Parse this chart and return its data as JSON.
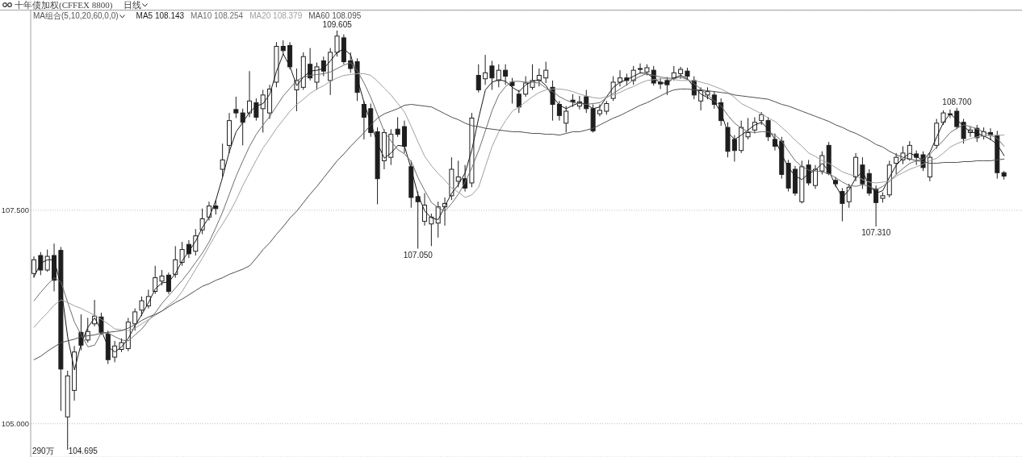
{
  "chart_data": {
    "type": "candlestick",
    "title": "十年债加权(CFFEX 8800)",
    "subtitle": "日线",
    "legend_title": "MA组合(5,10,20,60,0,0)",
    "color": "#1e1e1e",
    "categories": [
      null,
      null,
      null,
      null,
      null,
      null,
      null,
      null,
      null,
      null,
      null,
      null,
      null,
      null,
      null,
      null,
      null,
      null,
      null,
      null,
      null,
      null,
      null,
      null,
      null,
      null,
      null,
      null,
      null,
      null,
      null,
      null,
      null,
      null,
      null,
      null,
      null,
      null,
      null,
      null,
      null,
      null,
      null,
      null,
      null,
      null,
      null,
      null,
      null,
      null,
      null,
      null,
      null,
      null,
      null,
      null,
      null,
      null,
      null,
      null,
      null,
      null,
      null,
      null,
      null,
      null,
      null,
      null,
      null,
      null,
      null,
      null,
      null,
      null,
      null,
      null,
      null,
      null,
      null,
      null,
      null,
      null,
      null,
      null,
      null,
      null,
      null,
      null,
      null,
      null,
      null,
      null,
      null,
      null,
      null,
      null,
      null,
      null,
      null,
      null,
      null,
      null,
      null,
      null,
      null,
      null,
      null,
      null,
      null,
      null,
      null,
      null,
      null,
      null,
      null,
      null,
      null,
      null,
      null,
      null,
      null,
      null,
      null,
      null,
      null,
      null,
      null,
      null,
      null,
      null,
      null,
      null,
      null,
      null,
      null,
      null,
      null,
      null,
      null,
      null,
      null,
      null,
      null,
      null,
      null
    ],
    "ohlc": [
      [
        106.76,
        106.96,
        106.71,
        106.92
      ],
      [
        106.97,
        107.01,
        106.74,
        106.8
      ],
      [
        106.8,
        107.04,
        106.78,
        106.96
      ],
      [
        106.97,
        107.11,
        106.55,
        106.68
      ],
      [
        107.03,
        107.07,
        105.15,
        105.64
      ],
      [
        105.08,
        105.62,
        104.695,
        105.56
      ],
      [
        105.39,
        105.91,
        105.27,
        105.84
      ],
      [
        106.07,
        106.28,
        105.86,
        105.92
      ],
      [
        105.98,
        106.24,
        105.95,
        106.08
      ],
      [
        106.17,
        106.45,
        106.14,
        106.26
      ],
      [
        106.25,
        106.3,
        106.04,
        106.07
      ],
      [
        106.05,
        106.09,
        105.7,
        105.75
      ],
      [
        105.78,
        105.97,
        105.72,
        105.91
      ],
      [
        105.87,
        106.0,
        105.84,
        105.95
      ],
      [
        105.88,
        106.24,
        105.85,
        106.19
      ],
      [
        106.17,
        106.35,
        106.09,
        106.31
      ],
      [
        106.33,
        106.49,
        106.26,
        106.44
      ],
      [
        106.38,
        106.57,
        106.35,
        106.49
      ],
      [
        106.55,
        106.85,
        106.52,
        106.71
      ],
      [
        106.67,
        106.8,
        106.62,
        106.73
      ],
      [
        106.74,
        106.77,
        106.52,
        106.55
      ],
      [
        106.75,
        107.08,
        106.71,
        106.92
      ],
      [
        106.89,
        107.13,
        106.85,
        107.04
      ],
      [
        107.1,
        107.15,
        106.94,
        106.99
      ],
      [
        107.02,
        107.28,
        106.97,
        107.2
      ],
      [
        107.27,
        107.52,
        107.22,
        107.4
      ],
      [
        107.42,
        107.6,
        107.38,
        107.55
      ],
      [
        107.55,
        107.62,
        107.45,
        107.52
      ],
      [
        107.98,
        108.28,
        107.89,
        108.09
      ],
      [
        108.26,
        108.64,
        108.17,
        108.55
      ],
      [
        108.68,
        108.83,
        108.58,
        108.64
      ],
      [
        108.64,
        108.69,
        108.26,
        108.53
      ],
      [
        108.64,
        109.13,
        108.59,
        108.78
      ],
      [
        108.76,
        108.81,
        108.55,
        108.59
      ],
      [
        108.69,
        108.91,
        108.41,
        108.85
      ],
      [
        108.64,
        108.97,
        108.57,
        108.92
      ],
      [
        109.0,
        109.47,
        108.94,
        109.42
      ],
      [
        109.42,
        109.49,
        109.32,
        109.37
      ],
      [
        109.43,
        109.47,
        109.15,
        109.18
      ],
      [
        108.91,
        109.16,
        108.66,
        109.02
      ],
      [
        108.94,
        109.35,
        108.91,
        109.3
      ],
      [
        109.21,
        109.4,
        109.02,
        109.05
      ],
      [
        109.0,
        109.23,
        108.91,
        109.18
      ],
      [
        109.25,
        109.3,
        109.07,
        109.13
      ],
      [
        109.02,
        109.4,
        108.85,
        109.35
      ],
      [
        109.35,
        109.605,
        109.3,
        109.54
      ],
      [
        109.52,
        109.56,
        109.21,
        109.24
      ],
      [
        109.25,
        109.35,
        109.11,
        109.16
      ],
      [
        109.24,
        109.28,
        108.78,
        108.88
      ],
      [
        108.74,
        108.78,
        108.33,
        108.59
      ],
      [
        108.69,
        108.75,
        108.36,
        108.41
      ],
      [
        108.42,
        108.47,
        107.57,
        107.87
      ],
      [
        108.08,
        108.45,
        107.98,
        108.41
      ],
      [
        108.12,
        108.45,
        108.03,
        108.39
      ],
      [
        108.45,
        108.59,
        108.36,
        108.39
      ],
      [
        108.48,
        108.55,
        108.17,
        108.25
      ],
      [
        108.01,
        108.08,
        107.53,
        107.65
      ],
      [
        107.66,
        107.72,
        107.05,
        107.6
      ],
      [
        107.37,
        107.7,
        107.32,
        107.56
      ],
      [
        107.34,
        107.46,
        107.08,
        107.42
      ],
      [
        107.35,
        107.6,
        107.18,
        107.54
      ],
      [
        107.54,
        107.65,
        107.32,
        107.58
      ],
      [
        107.67,
        108.12,
        107.62,
        107.98
      ],
      [
        107.84,
        108.08,
        107.77,
        107.89
      ],
      [
        107.87,
        108.03,
        107.72,
        107.76
      ],
      [
        107.82,
        108.64,
        107.77,
        108.58
      ],
      [
        109.08,
        109.21,
        108.88,
        108.91
      ],
      [
        109.04,
        109.32,
        108.97,
        109.11
      ],
      [
        109.19,
        109.25,
        108.91,
        109.05
      ],
      [
        109.02,
        109.21,
        108.94,
        109.14
      ],
      [
        109.14,
        109.21,
        108.97,
        109.07
      ],
      [
        109.0,
        109.05,
        108.75,
        108.96
      ],
      [
        108.86,
        108.91,
        108.64,
        108.71
      ],
      [
        108.86,
        109.07,
        108.83,
        108.99
      ],
      [
        108.94,
        109.21,
        108.91,
        109.02
      ],
      [
        109.02,
        109.16,
        108.95,
        109.08
      ],
      [
        109.05,
        109.24,
        108.99,
        109.14
      ],
      [
        108.94,
        109.02,
        108.55,
        108.74
      ],
      [
        108.74,
        108.78,
        108.55,
        108.61
      ],
      [
        108.52,
        108.72,
        108.41,
        108.66
      ],
      [
        108.79,
        108.86,
        108.71,
        108.77
      ],
      [
        108.72,
        108.84,
        108.68,
        108.77
      ],
      [
        108.83,
        108.91,
        108.64,
        108.69
      ],
      [
        108.69,
        108.74,
        108.41,
        108.43
      ],
      [
        108.63,
        108.74,
        108.6,
        108.67
      ],
      [
        108.66,
        108.78,
        108.62,
        108.75
      ],
      [
        108.81,
        109.07,
        108.78,
        109.0
      ],
      [
        109.0,
        109.14,
        108.95,
        109.05
      ],
      [
        109.05,
        109.1,
        108.96,
        109.02
      ],
      [
        109.02,
        109.19,
        108.97,
        109.14
      ],
      [
        109.16,
        109.22,
        109.1,
        109.15
      ],
      [
        109.12,
        109.21,
        109.08,
        109.17
      ],
      [
        109.14,
        109.19,
        108.96,
        108.99
      ],
      [
        109.0,
        109.05,
        108.92,
        108.98
      ],
      [
        109.02,
        109.06,
        108.85,
        108.97
      ],
      [
        109.05,
        109.19,
        109.02,
        109.11
      ],
      [
        109.1,
        109.18,
        109.04,
        109.15
      ],
      [
        109.13,
        109.17,
        109.03,
        109.07
      ],
      [
        109.02,
        109.07,
        108.8,
        108.85
      ],
      [
        108.78,
        108.94,
        108.67,
        108.9
      ],
      [
        108.85,
        108.94,
        108.8,
        108.89
      ],
      [
        108.85,
        108.89,
        108.69,
        108.74
      ],
      [
        108.76,
        108.81,
        108.49,
        108.55
      ],
      [
        108.47,
        108.53,
        108.12,
        108.19
      ],
      [
        108.33,
        108.38,
        108.07,
        108.2
      ],
      [
        108.2,
        108.55,
        108.17,
        108.47
      ],
      [
        108.36,
        108.58,
        108.33,
        108.41
      ],
      [
        108.44,
        108.59,
        108.4,
        108.53
      ],
      [
        108.55,
        108.65,
        108.5,
        108.62
      ],
      [
        108.55,
        108.59,
        108.31,
        108.36
      ],
      [
        108.33,
        108.4,
        108.2,
        108.25
      ],
      [
        108.31,
        108.36,
        107.87,
        107.92
      ],
      [
        108.05,
        108.09,
        107.72,
        107.76
      ],
      [
        107.98,
        108.02,
        107.67,
        107.7
      ],
      [
        107.6,
        108.08,
        107.58,
        108.01
      ],
      [
        108.03,
        108.09,
        107.79,
        107.82
      ],
      [
        107.79,
        108.03,
        107.75,
        107.98
      ],
      [
        107.96,
        108.19,
        107.92,
        108.14
      ],
      [
        108.26,
        108.3,
        107.91,
        107.93
      ],
      [
        107.85,
        107.89,
        107.77,
        107.81
      ],
      [
        107.72,
        107.76,
        107.37,
        107.58
      ],
      [
        107.6,
        107.81,
        107.53,
        107.77
      ],
      [
        107.89,
        108.17,
        107.84,
        108.12
      ],
      [
        108.03,
        108.12,
        107.75,
        107.81
      ],
      [
        107.93,
        107.98,
        107.67,
        107.7
      ],
      [
        107.75,
        107.79,
        107.31,
        107.59
      ],
      [
        107.64,
        107.71,
        107.59,
        107.67
      ],
      [
        107.68,
        108.08,
        107.65,
        108.03
      ],
      [
        108.05,
        108.17,
        107.92,
        108.12
      ],
      [
        108.09,
        108.25,
        108.04,
        108.17
      ],
      [
        108.1,
        108.31,
        108.08,
        108.26
      ],
      [
        108.16,
        108.2,
        108.03,
        108.12
      ],
      [
        108.15,
        108.19,
        107.96,
        108.0
      ],
      [
        107.89,
        108.17,
        107.84,
        108.12
      ],
      [
        108.26,
        108.57,
        108.22,
        108.52
      ],
      [
        108.53,
        108.67,
        108.5,
        108.64
      ],
      [
        108.63,
        108.68,
        108.58,
        108.62
      ],
      [
        108.66,
        108.7,
        108.45,
        108.48
      ],
      [
        108.53,
        108.57,
        108.28,
        108.34
      ],
      [
        108.41,
        108.48,
        108.36,
        108.44
      ],
      [
        108.46,
        108.5,
        108.3,
        108.35
      ],
      [
        108.37,
        108.47,
        108.33,
        108.42
      ],
      [
        108.41,
        108.46,
        108.32,
        108.38
      ],
      [
        108.37,
        108.43,
        107.87,
        107.94
      ],
      [
        107.94,
        107.96,
        107.86,
        107.9
      ]
    ],
    "series": [
      {
        "name": "MA5 108.143",
        "type": "line",
        "color": "#1a1a1a",
        "values": [
          106.72,
          106.88,
          106.92,
          106.92,
          106.61,
          106.01,
          105.63,
          105.94,
          106.13,
          106.24,
          106.09,
          105.9,
          105.84,
          105.9,
          106.0,
          106.15,
          106.28,
          106.42,
          106.58,
          106.65,
          106.66,
          106.76,
          106.91,
          107.02,
          107.14,
          107.3,
          107.42,
          107.62,
          107.89,
          108.19,
          108.42,
          108.53,
          108.65,
          108.72,
          108.75,
          108.86,
          109.13,
          109.33,
          109.18,
          108.96,
          109.06,
          109.13,
          109.14,
          109.16,
          109.25,
          109.35,
          109.39,
          109.32,
          109.04,
          108.76,
          108.52,
          108.28,
          108.11,
          108.17,
          108.26,
          108.25,
          107.98,
          107.68,
          107.49,
          107.41,
          107.39,
          107.55,
          107.7,
          107.8,
          107.94,
          108.21,
          108.58,
          108.91,
          109.0,
          109.03,
          109.01,
          108.94,
          108.89,
          108.97,
          109.01,
          109.03,
          108.96,
          108.83,
          108.73,
          108.69,
          108.73,
          108.76,
          108.74,
          108.69,
          108.71,
          108.83,
          108.94,
          109.0,
          109.03,
          109.07,
          109.11,
          109.1,
          109.05,
          108.99,
          108.99,
          109.05,
          109.08,
          109.04,
          108.94,
          108.86,
          108.82,
          108.77,
          108.64,
          108.41,
          108.33,
          108.38,
          108.44,
          108.5,
          108.53,
          108.45,
          108.33,
          108.15,
          108.0,
          107.9,
          107.86,
          107.93,
          107.97,
          108.05,
          107.96,
          107.79,
          107.65,
          107.74,
          107.88,
          107.95,
          107.79,
          107.7,
          107.73,
          107.89,
          108.03,
          108.11,
          108.17,
          108.13,
          108.08,
          108.18,
          108.36,
          108.53,
          108.63,
          108.56,
          108.48,
          108.42,
          108.4,
          108.37,
          108.33,
          108.27,
          108.14
        ]
      },
      {
        "name": "MA10 108.254",
        "type": "line",
        "color": "#6e6e6e",
        "values": [
          106.44,
          106.54,
          106.63,
          106.71,
          106.66,
          106.42,
          106.19,
          106.04,
          105.9,
          105.92,
          106.07,
          106.06,
          106.02,
          105.98,
          105.97,
          106.04,
          106.11,
          106.21,
          106.3,
          106.41,
          106.5,
          106.59,
          106.68,
          106.78,
          106.89,
          107.0,
          107.13,
          107.3,
          107.48,
          107.69,
          107.9,
          108.08,
          108.25,
          108.39,
          108.5,
          108.6,
          108.72,
          108.84,
          108.93,
          109.02,
          109.06,
          109.08,
          109.09,
          109.1,
          109.12,
          109.16,
          109.2,
          109.23,
          109.13,
          108.99,
          108.82,
          108.62,
          108.42,
          108.31,
          108.21,
          108.16,
          108.07,
          107.88,
          107.73,
          107.59,
          107.53,
          107.49,
          107.58,
          107.69,
          107.83,
          108.0,
          108.2,
          108.43,
          108.67,
          108.85,
          108.95,
          109.01,
          109.01,
          109.0,
          109.0,
          108.99,
          108.93,
          108.89,
          108.83,
          108.79,
          108.76,
          108.75,
          108.74,
          108.75,
          108.76,
          108.82,
          108.87,
          108.92,
          108.97,
          109.03,
          109.07,
          109.1,
          109.08,
          109.06,
          109.05,
          109.04,
          109.06,
          109.03,
          108.98,
          108.92,
          108.85,
          108.78,
          108.72,
          108.61,
          108.52,
          108.46,
          108.42,
          108.41,
          108.42,
          108.42,
          108.38,
          108.31,
          108.19,
          108.08,
          108.01,
          107.97,
          107.96,
          107.95,
          107.93,
          107.88,
          107.83,
          107.79,
          107.78,
          107.8,
          107.78,
          107.74,
          107.78,
          107.84,
          107.92,
          107.99,
          108.05,
          108.08,
          108.1,
          108.16,
          108.24,
          108.32,
          108.41,
          108.46,
          108.5,
          108.48,
          108.45,
          108.42,
          108.38,
          108.34,
          108.25
        ]
      },
      {
        "name": "MA20 108.379",
        "type": "line",
        "color": "#a0a0a0",
        "values": [
          106.13,
          106.22,
          106.3,
          106.39,
          106.45,
          106.42,
          106.38,
          106.35,
          106.31,
          106.27,
          106.22,
          106.17,
          106.11,
          106.1,
          106.09,
          106.12,
          106.17,
          106.22,
          106.27,
          106.32,
          106.39,
          106.45,
          106.55,
          106.68,
          106.81,
          106.94,
          107.08,
          107.22,
          107.34,
          107.47,
          107.62,
          107.79,
          107.94,
          108.09,
          108.23,
          108.34,
          108.46,
          108.56,
          108.66,
          108.74,
          108.8,
          108.87,
          108.92,
          108.96,
          109.01,
          109.05,
          109.08,
          109.09,
          109.1,
          109.1,
          109.08,
          109.01,
          108.93,
          108.85,
          108.75,
          108.65,
          108.48,
          108.3,
          108.13,
          108.02,
          107.93,
          107.85,
          107.76,
          107.71,
          107.65,
          107.68,
          107.77,
          108.01,
          108.25,
          108.42,
          108.55,
          108.66,
          108.71,
          108.77,
          108.83,
          108.88,
          108.91,
          108.92,
          108.92,
          108.91,
          108.89,
          108.86,
          108.84,
          108.82,
          108.81,
          108.83,
          108.85,
          108.88,
          108.92,
          108.95,
          108.99,
          109.02,
          109.03,
          109.04,
          109.04,
          109.03,
          109.02,
          109.02,
          109.02,
          109.0,
          108.98,
          108.95,
          108.92,
          108.88,
          108.82,
          108.75,
          108.71,
          108.67,
          108.63,
          108.58,
          108.54,
          108.47,
          108.4,
          108.32,
          108.25,
          108.17,
          108.13,
          108.08,
          108.05,
          108.0,
          107.95,
          107.92,
          107.9,
          107.86,
          107.83,
          107.82,
          107.83,
          107.84,
          107.9,
          107.94,
          107.98,
          108.01,
          108.04,
          108.08,
          108.11,
          108.17,
          108.24,
          108.28,
          108.31,
          108.34,
          108.36,
          108.37,
          108.38,
          108.38,
          108.38
        ]
      },
      {
        "name": "MA60 108.095",
        "type": "line",
        "color": "#505050",
        "values": [
          105.75,
          105.79,
          105.85,
          105.9,
          105.95,
          105.97,
          105.99,
          106.02,
          106.03,
          106.04,
          106.06,
          106.07,
          106.08,
          106.09,
          106.12,
          106.16,
          106.21,
          106.25,
          106.28,
          106.32,
          106.37,
          106.42,
          106.46,
          106.51,
          106.56,
          106.61,
          106.64,
          106.68,
          106.71,
          106.75,
          106.78,
          106.81,
          106.85,
          106.94,
          107.04,
          107.12,
          107.22,
          107.31,
          107.41,
          107.49,
          107.59,
          107.69,
          107.78,
          107.88,
          107.98,
          108.08,
          108.16,
          108.25,
          108.33,
          108.41,
          108.5,
          108.58,
          108.63,
          108.66,
          108.69,
          108.73,
          108.74,
          108.73,
          108.72,
          108.71,
          108.67,
          108.63,
          108.59,
          108.56,
          108.52,
          108.49,
          108.48,
          108.46,
          108.45,
          108.44,
          108.43,
          108.42,
          108.42,
          108.41,
          108.4,
          108.4,
          108.39,
          108.39,
          108.38,
          108.4,
          108.42,
          108.42,
          108.44,
          108.46,
          108.5,
          108.54,
          108.58,
          108.61,
          108.65,
          108.69,
          108.73,
          108.76,
          108.8,
          108.84,
          108.88,
          108.91,
          108.92,
          108.92,
          108.91,
          108.91,
          108.9,
          108.89,
          108.88,
          108.87,
          108.85,
          108.84,
          108.83,
          108.82,
          108.81,
          108.8,
          108.77,
          108.74,
          108.72,
          108.69,
          108.66,
          108.63,
          108.6,
          108.57,
          108.54,
          108.5,
          108.47,
          108.43,
          108.4,
          108.36,
          108.32,
          108.27,
          108.24,
          108.19,
          108.15,
          108.12,
          108.1,
          108.08,
          108.07,
          108.05,
          108.05,
          108.06,
          108.06,
          108.06,
          108.07,
          108.07,
          108.08,
          108.08,
          108.08,
          108.09,
          108.1
        ]
      }
    ],
    "ylim": [
      104.61,
      109.84
    ],
    "yticks": [
      {
        "value": 105,
        "label": "105.000"
      },
      {
        "value": 107.5,
        "label": "107.500"
      }
    ],
    "grid": "y",
    "tick_labels": "y",
    "annotations": [
      {
        "text": "109.605",
        "y": 109.605
      },
      {
        "text": "107.050",
        "y": 107.05
      },
      {
        "text": "107.310",
        "y": 107.31
      },
      {
        "text": "108.700",
        "y": 108.7
      },
      "290万",
      "104.695"
    ]
  }
}
